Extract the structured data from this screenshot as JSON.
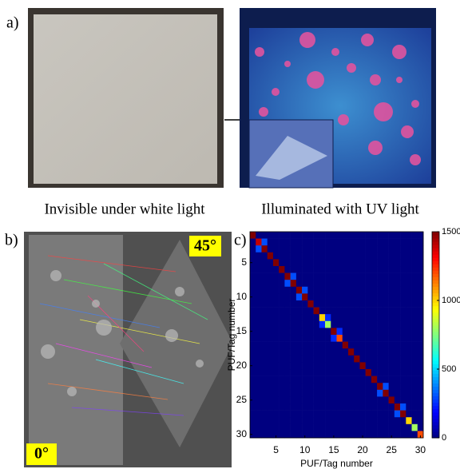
{
  "panels": {
    "a": {
      "label": "a)",
      "left_caption": "Invisible under white light",
      "right_caption": "Illuminated with UV light"
    },
    "b": {
      "label": "b)",
      "angle_top": "45°",
      "angle_bottom": "0°"
    },
    "c": {
      "label": "c)"
    }
  },
  "chart_data": {
    "type": "heatmap",
    "xlabel": "PUF/Tag number",
    "ylabel": "PUF/Tag number",
    "xlim": [
      0.5,
      30.5
    ],
    "ylim": [
      0.5,
      30.5
    ],
    "y_inverted": true,
    "xticks": [
      5,
      10,
      15,
      20,
      25,
      30
    ],
    "yticks": [
      5,
      10,
      15,
      20,
      25,
      30
    ],
    "colormap": "jet",
    "clim": [
      0,
      1500
    ],
    "cticks": [
      0,
      500,
      1000,
      1500
    ],
    "z": [
      [
        1500,
        0,
        0,
        0,
        0,
        0,
        0,
        0,
        0,
        0,
        0,
        0,
        0,
        0,
        0,
        0,
        0,
        0,
        0,
        0,
        0,
        0,
        0,
        0,
        0,
        0,
        0,
        0,
        0,
        0
      ],
      [
        0,
        1400,
        300,
        0,
        0,
        0,
        0,
        0,
        0,
        0,
        0,
        0,
        0,
        0,
        0,
        0,
        0,
        0,
        0,
        0,
        0,
        0,
        0,
        0,
        0,
        0,
        0,
        0,
        0,
        0
      ],
      [
        0,
        300,
        1500,
        0,
        0,
        0,
        0,
        0,
        0,
        0,
        0,
        0,
        0,
        0,
        0,
        0,
        0,
        0,
        0,
        0,
        0,
        0,
        0,
        0,
        0,
        0,
        0,
        0,
        0,
        0
      ],
      [
        0,
        0,
        0,
        1500,
        0,
        0,
        0,
        0,
        0,
        0,
        0,
        0,
        0,
        0,
        0,
        0,
        0,
        0,
        0,
        0,
        0,
        0,
        0,
        0,
        0,
        0,
        0,
        0,
        0,
        0
      ],
      [
        0,
        0,
        0,
        0,
        1500,
        0,
        0,
        0,
        0,
        0,
        0,
        0,
        0,
        0,
        0,
        0,
        0,
        0,
        0,
        0,
        0,
        0,
        0,
        0,
        0,
        0,
        0,
        0,
        0,
        0
      ],
      [
        0,
        0,
        0,
        0,
        0,
        1500,
        0,
        0,
        0,
        0,
        0,
        0,
        0,
        0,
        0,
        0,
        0,
        0,
        0,
        0,
        0,
        0,
        0,
        0,
        0,
        0,
        0,
        0,
        0,
        0
      ],
      [
        0,
        0,
        0,
        0,
        0,
        0,
        1500,
        300,
        0,
        0,
        0,
        0,
        0,
        0,
        0,
        0,
        0,
        0,
        0,
        0,
        0,
        0,
        0,
        0,
        0,
        0,
        0,
        0,
        0,
        0
      ],
      [
        0,
        0,
        0,
        0,
        0,
        0,
        300,
        1500,
        0,
        0,
        0,
        0,
        0,
        0,
        0,
        0,
        0,
        0,
        0,
        0,
        0,
        0,
        0,
        0,
        0,
        0,
        0,
        0,
        0,
        0
      ],
      [
        0,
        0,
        0,
        0,
        0,
        0,
        0,
        0,
        1500,
        300,
        0,
        0,
        0,
        0,
        0,
        0,
        0,
        0,
        0,
        0,
        0,
        0,
        0,
        0,
        0,
        0,
        0,
        0,
        0,
        0
      ],
      [
        0,
        0,
        0,
        0,
        0,
        0,
        0,
        0,
        300,
        1500,
        0,
        0,
        0,
        0,
        0,
        0,
        0,
        0,
        0,
        0,
        0,
        0,
        0,
        0,
        0,
        0,
        0,
        0,
        0,
        0
      ],
      [
        0,
        0,
        0,
        0,
        0,
        0,
        0,
        0,
        0,
        0,
        1500,
        0,
        0,
        0,
        0,
        0,
        0,
        0,
        0,
        0,
        0,
        0,
        0,
        0,
        0,
        0,
        0,
        0,
        0,
        0
      ],
      [
        0,
        0,
        0,
        0,
        0,
        0,
        0,
        0,
        0,
        0,
        0,
        1500,
        0,
        0,
        0,
        0,
        0,
        0,
        0,
        0,
        0,
        0,
        0,
        0,
        0,
        0,
        0,
        0,
        0,
        0
      ],
      [
        0,
        0,
        0,
        0,
        0,
        0,
        0,
        0,
        0,
        0,
        0,
        0,
        1000,
        250,
        0,
        0,
        0,
        0,
        0,
        0,
        0,
        0,
        0,
        0,
        0,
        0,
        0,
        0,
        0,
        0
      ],
      [
        0,
        0,
        0,
        0,
        0,
        0,
        0,
        0,
        0,
        0,
        0,
        0,
        250,
        800,
        0,
        0,
        0,
        0,
        0,
        0,
        0,
        0,
        0,
        0,
        0,
        0,
        0,
        0,
        0,
        0
      ],
      [
        0,
        0,
        0,
        0,
        0,
        0,
        0,
        0,
        0,
        0,
        0,
        0,
        0,
        0,
        1500,
        250,
        0,
        0,
        0,
        0,
        0,
        0,
        0,
        0,
        0,
        0,
        0,
        0,
        0,
        0
      ],
      [
        0,
        0,
        0,
        0,
        0,
        0,
        0,
        0,
        0,
        0,
        0,
        0,
        0,
        0,
        250,
        1200,
        0,
        0,
        0,
        0,
        0,
        0,
        0,
        0,
        0,
        0,
        0,
        0,
        0,
        0
      ],
      [
        0,
        0,
        0,
        0,
        0,
        0,
        0,
        0,
        0,
        0,
        0,
        0,
        0,
        0,
        0,
        0,
        1500,
        0,
        0,
        0,
        0,
        0,
        0,
        0,
        0,
        0,
        0,
        0,
        0,
        0
      ],
      [
        0,
        0,
        0,
        0,
        0,
        0,
        0,
        0,
        0,
        0,
        0,
        0,
        0,
        0,
        0,
        0,
        0,
        1500,
        0,
        0,
        0,
        0,
        0,
        0,
        0,
        0,
        0,
        0,
        0,
        0
      ],
      [
        0,
        0,
        0,
        0,
        0,
        0,
        0,
        0,
        0,
        0,
        0,
        0,
        0,
        0,
        0,
        0,
        0,
        0,
        1500,
        0,
        0,
        0,
        0,
        0,
        0,
        0,
        0,
        0,
        0,
        0
      ],
      [
        0,
        0,
        0,
        0,
        0,
        0,
        0,
        0,
        0,
        0,
        0,
        0,
        0,
        0,
        0,
        0,
        0,
        0,
        0,
        1500,
        0,
        0,
        0,
        0,
        0,
        0,
        0,
        0,
        0,
        0
      ],
      [
        0,
        0,
        0,
        0,
        0,
        0,
        0,
        0,
        0,
        0,
        0,
        0,
        0,
        0,
        0,
        0,
        0,
        0,
        0,
        0,
        1500,
        0,
        0,
        0,
        0,
        0,
        0,
        0,
        0,
        0
      ],
      [
        0,
        0,
        0,
        0,
        0,
        0,
        0,
        0,
        0,
        0,
        0,
        0,
        0,
        0,
        0,
        0,
        0,
        0,
        0,
        0,
        0,
        1500,
        0,
        0,
        0,
        0,
        0,
        0,
        0,
        0
      ],
      [
        0,
        0,
        0,
        0,
        0,
        0,
        0,
        0,
        0,
        0,
        0,
        0,
        0,
        0,
        0,
        0,
        0,
        0,
        0,
        0,
        0,
        0,
        1500,
        300,
        0,
        0,
        0,
        0,
        0,
        0
      ],
      [
        0,
        0,
        0,
        0,
        0,
        0,
        0,
        0,
        0,
        0,
        0,
        0,
        0,
        0,
        0,
        0,
        0,
        0,
        0,
        0,
        0,
        0,
        300,
        1500,
        0,
        0,
        0,
        0,
        0,
        0
      ],
      [
        0,
        0,
        0,
        0,
        0,
        0,
        0,
        0,
        0,
        0,
        0,
        0,
        0,
        0,
        0,
        0,
        0,
        0,
        0,
        0,
        0,
        0,
        0,
        0,
        1500,
        0,
        0,
        0,
        0,
        0
      ],
      [
        0,
        0,
        0,
        0,
        0,
        0,
        0,
        0,
        0,
        0,
        0,
        0,
        0,
        0,
        0,
        0,
        0,
        0,
        0,
        0,
        0,
        0,
        0,
        0,
        0,
        1500,
        300,
        0,
        0,
        0
      ],
      [
        0,
        0,
        0,
        0,
        0,
        0,
        0,
        0,
        0,
        0,
        0,
        0,
        0,
        0,
        0,
        0,
        0,
        0,
        0,
        0,
        0,
        0,
        0,
        0,
        0,
        300,
        1500,
        0,
        0,
        0
      ],
      [
        0,
        0,
        0,
        0,
        0,
        0,
        0,
        0,
        0,
        0,
        0,
        0,
        0,
        0,
        0,
        0,
        0,
        0,
        0,
        0,
        0,
        0,
        0,
        0,
        0,
        0,
        0,
        1000,
        0,
        0
      ],
      [
        0,
        0,
        0,
        0,
        0,
        0,
        0,
        0,
        0,
        0,
        0,
        0,
        0,
        0,
        0,
        0,
        0,
        0,
        0,
        0,
        0,
        0,
        0,
        0,
        0,
        0,
        0,
        0,
        800,
        0
      ],
      [
        0,
        0,
        0,
        0,
        0,
        0,
        0,
        0,
        0,
        0,
        0,
        0,
        0,
        0,
        0,
        0,
        0,
        0,
        0,
        0,
        0,
        0,
        0,
        0,
        0,
        0,
        0,
        0,
        0,
        1200
      ]
    ]
  }
}
